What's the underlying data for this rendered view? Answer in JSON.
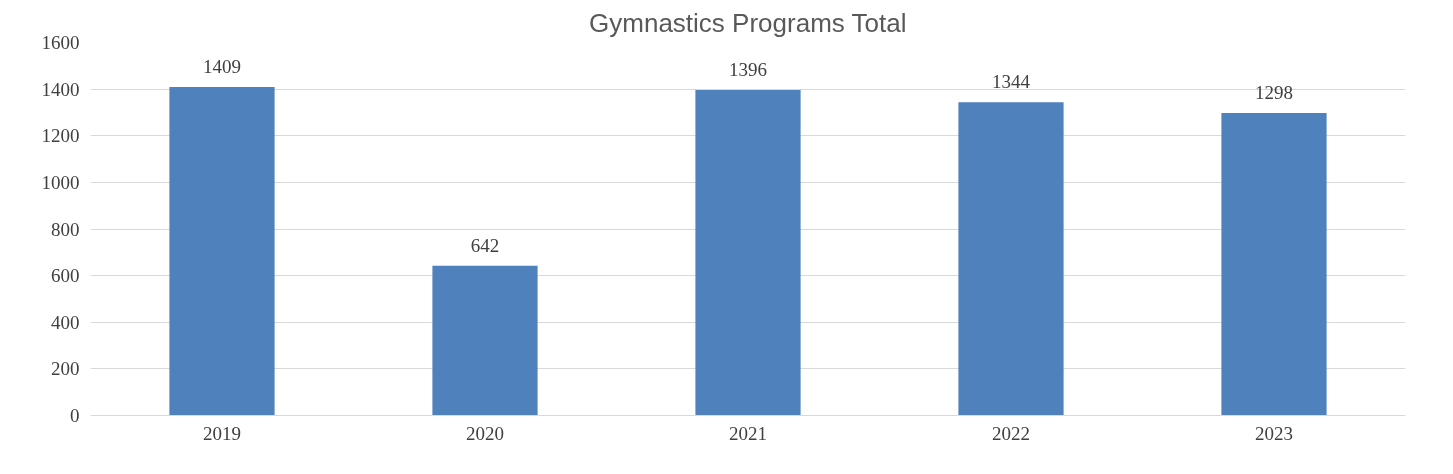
{
  "chart_data": {
    "type": "bar",
    "title": "Gymnastics Programs Total",
    "categories": [
      "2019",
      "2020",
      "2021",
      "2022",
      "2023"
    ],
    "values": [
      1409,
      642,
      1396,
      1344,
      1298
    ],
    "color": "#4f81bd",
    "ylim": [
      0,
      1600
    ],
    "yticks": [
      0,
      200,
      400,
      600,
      800,
      1000,
      1200,
      1400,
      1600
    ],
    "grid": "y",
    "data_labels": true
  }
}
